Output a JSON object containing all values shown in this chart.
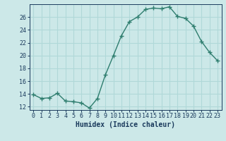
{
  "x": [
    0,
    1,
    2,
    3,
    4,
    5,
    6,
    7,
    8,
    9,
    10,
    11,
    12,
    13,
    14,
    15,
    16,
    17,
    18,
    19,
    20,
    21,
    22,
    23
  ],
  "y": [
    13.9,
    13.3,
    13.4,
    14.1,
    12.9,
    12.8,
    12.6,
    11.8,
    13.3,
    17.0,
    20.0,
    23.1,
    25.3,
    26.0,
    27.2,
    27.4,
    27.3,
    27.6,
    26.1,
    25.8,
    24.6,
    22.2,
    20.5,
    19.2
  ],
  "xlabel": "Humidex (Indice chaleur)",
  "ylim": [
    11.5,
    28.0
  ],
  "xlim": [
    -0.5,
    23.5
  ],
  "yticks": [
    12,
    14,
    16,
    18,
    20,
    22,
    24,
    26
  ],
  "xticks": [
    0,
    1,
    2,
    3,
    4,
    5,
    6,
    7,
    8,
    9,
    10,
    11,
    12,
    13,
    14,
    15,
    16,
    17,
    18,
    19,
    20,
    21,
    22,
    23
  ],
  "xtick_labels": [
    "0",
    "1",
    "2",
    "3",
    "4",
    "5",
    "6",
    "7",
    "8",
    "9",
    "10",
    "11",
    "12",
    "13",
    "14",
    "15",
    "16",
    "17",
    "18",
    "19",
    "20",
    "21",
    "22",
    "23"
  ],
  "line_color": "#2e7d6e",
  "marker": "+",
  "bg_color": "#cce8e8",
  "grid_color": "#b0d8d8",
  "font_color": "#1a3a5c",
  "tick_fontsize": 6.0,
  "xlabel_fontsize": 7.0,
  "marker_size": 4,
  "linewidth": 1.0
}
